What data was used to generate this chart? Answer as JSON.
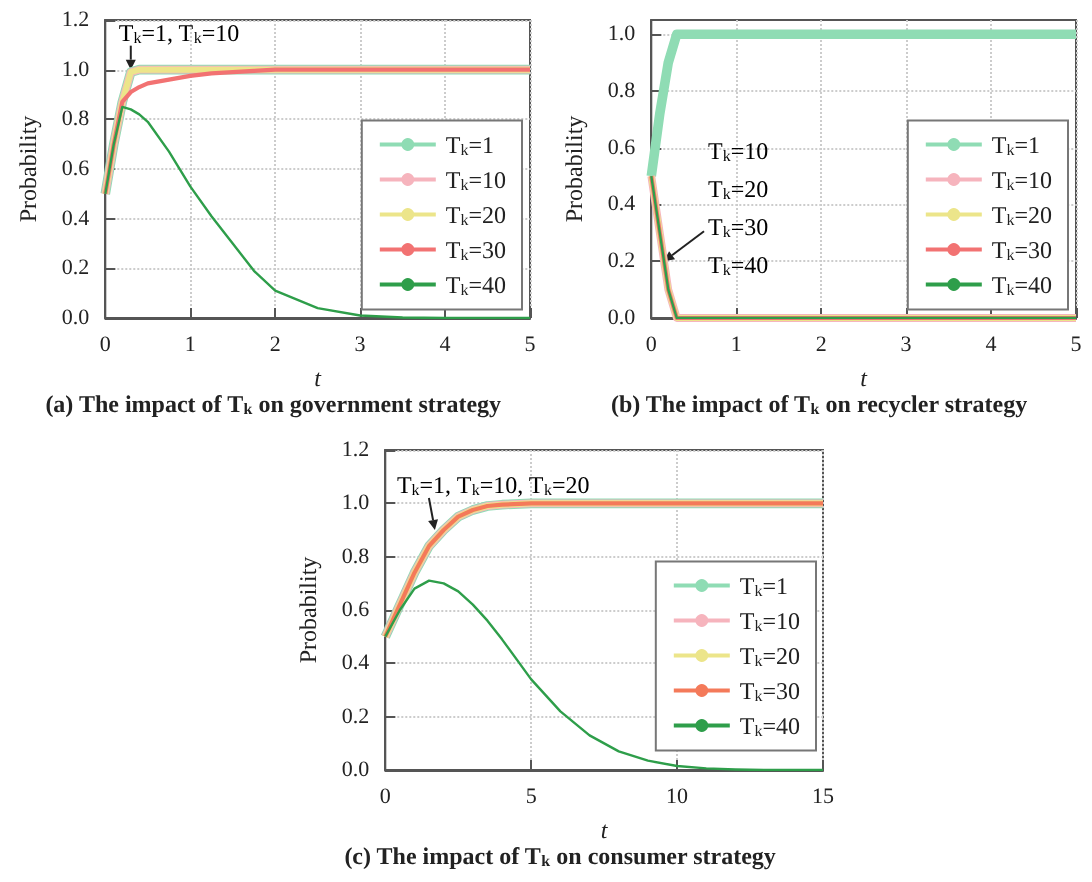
{
  "chart_data": [
    {
      "type": "line",
      "title": "(a) The impact of T$_{k}$ on government strategy",
      "xlabel": "t",
      "ylabel": "Probability",
      "x": [
        0,
        0.1,
        0.2,
        0.3,
        0.4,
        0.5,
        0.75,
        1,
        1.25,
        1.5,
        1.75,
        2,
        2.5,
        3,
        3.5,
        4,
        5
      ],
      "series": [
        {
          "name": "T$_{k}$=1",
          "color": "#8fdcb4",
          "values": [
            0.5,
            0.7,
            0.87,
            0.99,
            1,
            1,
            1,
            1,
            1,
            1,
            1,
            1,
            1,
            1,
            1,
            1,
            1
          ]
        },
        {
          "name": "T$_{k}$=10",
          "color": "#f6b4bd",
          "values": [
            0.5,
            0.7,
            0.87,
            0.99,
            1,
            1,
            1,
            1,
            1,
            1,
            1,
            1,
            1,
            1,
            1,
            1,
            1
          ]
        },
        {
          "name": "T$_{k}$=20",
          "color": "#ece58a",
          "values": [
            0.5,
            0.7,
            0.87,
            0.99,
            1,
            1,
            1,
            1,
            1,
            1,
            1,
            1,
            1,
            1,
            1,
            1,
            1
          ]
        },
        {
          "name": "T$_{k}$=30",
          "color": "#f27272",
          "values": [
            0.5,
            0.7,
            0.87,
            0.91,
            0.93,
            0.945,
            0.96,
            0.975,
            0.985,
            0.99,
            0.995,
            1,
            1,
            1,
            1,
            1,
            1
          ]
        },
        {
          "name": "T$_{k}$=40",
          "color": "#2e9e4a",
          "values": [
            0.5,
            0.7,
            0.85,
            0.84,
            0.82,
            0.79,
            0.67,
            0.53,
            0.41,
            0.3,
            0.19,
            0.11,
            0.04,
            0.01,
            0.002,
            0,
            0
          ]
        }
      ],
      "xlim": [
        0,
        5
      ],
      "ylim": [
        0,
        1.2
      ],
      "xticks": [
        0,
        1,
        2,
        3,
        4,
        5
      ],
      "yticks": [
        {
          "value": 0,
          "label": "0.0"
        },
        0.2,
        0.4,
        0.6,
        0.8,
        {
          "value": 1,
          "label": "1.0"
        },
        {
          "value": 1.2,
          "label": "1.2"
        }
      ],
      "grid": true,
      "legend": "right",
      "annotations": [
        {
          "text": "T$_{k}$=1, T$_{k}$=10",
          "x": 0.3,
          "y": 1.0
        }
      ]
    },
    {
      "type": "line",
      "title": "(b) The impact of T$_{k}$ on recycler strategy",
      "xlabel": "t",
      "ylabel": "Probability",
      "x": [
        0,
        0.1,
        0.2,
        0.3,
        1,
        2,
        3,
        4,
        5
      ],
      "series": [
        {
          "name": "T$_{k}$=1",
          "color": "#8fdcb4",
          "values": [
            0.5,
            0.72,
            0.9,
            1,
            1,
            1,
            1,
            1,
            1
          ]
        },
        {
          "name": "T$_{k}$=10",
          "color": "#f6b4bd",
          "values": [
            0.5,
            0.3,
            0.1,
            0,
            0,
            0,
            0,
            0,
            0
          ]
        },
        {
          "name": "T$_{k}$=20",
          "color": "#ece58a",
          "values": [
            0.5,
            0.3,
            0.1,
            0,
            0,
            0,
            0,
            0,
            0
          ]
        },
        {
          "name": "T$_{k}$=30",
          "color": "#f27272",
          "values": [
            0.5,
            0.3,
            0.1,
            0,
            0,
            0,
            0,
            0,
            0
          ]
        },
        {
          "name": "T$_{k}$=40",
          "color": "#2e9e4a",
          "values": [
            0.5,
            0.3,
            0.1,
            0,
            0,
            0,
            0,
            0,
            0
          ]
        }
      ],
      "xlim": [
        0,
        5
      ],
      "ylim": [
        0,
        1.05
      ],
      "xticks": [
        0,
        1,
        2,
        3,
        4,
        5
      ],
      "yticks": [
        {
          "value": 0,
          "label": "0.0"
        },
        0.2,
        0.4,
        0.6,
        0.8,
        {
          "value": 1,
          "label": "1.0"
        }
      ],
      "grid": true,
      "legend": "right",
      "annotations": [
        "T$_{k}$=10",
        "T$_{k}$=20",
        {
          "text": "T$_{k}$=30",
          "x": 0.15,
          "y": 0.2
        },
        "T$_{k}$=40"
      ]
    },
    {
      "type": "line",
      "title": "(c) The impact of T$_{k}$ on consumer strategy",
      "xlabel": "t",
      "ylabel": "Probability",
      "x": [
        0,
        0.5,
        1,
        1.5,
        2,
        2.5,
        3,
        3.5,
        4,
        5,
        6,
        7,
        8,
        9,
        10,
        11,
        12,
        13,
        15
      ],
      "series": [
        {
          "name": "T$_{k}$=1",
          "color": "#8fdcb4",
          "values": [
            0.5,
            0.62,
            0.74,
            0.84,
            0.9,
            0.95,
            0.975,
            0.99,
            0.995,
            1,
            1,
            1,
            1,
            1,
            1,
            1,
            1,
            1,
            1
          ]
        },
        {
          "name": "T$_{k}$=10",
          "color": "#f6b4bd",
          "values": [
            0.5,
            0.62,
            0.74,
            0.84,
            0.9,
            0.95,
            0.975,
            0.99,
            0.995,
            1,
            1,
            1,
            1,
            1,
            1,
            1,
            1,
            1,
            1
          ]
        },
        {
          "name": "T$_{k}$=20",
          "color": "#ece58a",
          "values": [
            0.5,
            0.62,
            0.74,
            0.84,
            0.9,
            0.95,
            0.975,
            0.99,
            0.995,
            1,
            1,
            1,
            1,
            1,
            1,
            1,
            1,
            1,
            1
          ]
        },
        {
          "name": "T$_{k}$=30",
          "color": "#f47a5a",
          "values": [
            0.5,
            0.62,
            0.74,
            0.84,
            0.9,
            0.95,
            0.975,
            0.99,
            0.995,
            1,
            1,
            1,
            1,
            1,
            1,
            1,
            1,
            1,
            1
          ]
        },
        {
          "name": "T$_{k}$=40",
          "color": "#2e9e4a",
          "values": [
            0.5,
            0.6,
            0.68,
            0.71,
            0.7,
            0.67,
            0.62,
            0.56,
            0.49,
            0.34,
            0.22,
            0.13,
            0.07,
            0.035,
            0.015,
            0.006,
            0.002,
            0,
            0
          ]
        }
      ],
      "xlim": [
        0,
        15
      ],
      "ylim": [
        0,
        1.2
      ],
      "xticks": [
        0,
        5,
        10,
        15
      ],
      "yticks": [
        {
          "value": 0,
          "label": "0.0"
        },
        0.2,
        0.4,
        0.6,
        0.8,
        {
          "value": 1,
          "label": "1.0"
        },
        {
          "value": 1.2,
          "label": "1.2"
        }
      ],
      "grid": true,
      "legend": "right",
      "annotations": [
        {
          "text": "T$_{k}$=1, T$_{k}$=10, T$_{k}$=20",
          "x": 1.7,
          "y": 0.9
        }
      ]
    }
  ]
}
